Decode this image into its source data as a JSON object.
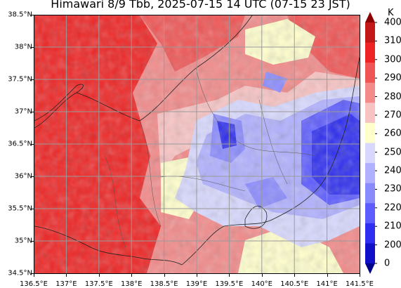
{
  "title": "Himawari 8/9 Tbb, 2025-07-15 14 UTC (07-15 23 JST)",
  "map": {
    "lon_range": [
      136.5,
      141.5
    ],
    "lat_range": [
      34.5,
      38.5
    ],
    "grid": true,
    "x_ticks": [
      "136.5°E",
      "137°E",
      "137.5°E",
      "138°E",
      "138.5°E",
      "139°E",
      "139.5°E",
      "140°E",
      "140.5°E",
      "141°E",
      "141.5°E"
    ],
    "y_ticks": [
      "38.5°N",
      "38°N",
      "37.5°N",
      "37°N",
      "36.5°N",
      "36°N",
      "35.5°N",
      "35°N",
      "34.5°N"
    ]
  },
  "colorbar": {
    "unit": "K",
    "labels": [
      "400",
      "310",
      "300",
      "290",
      "280",
      "270",
      "260",
      "250",
      "240",
      "230",
      "220",
      "210",
      "200",
      "0"
    ],
    "colors": [
      "#8b0000",
      "#c21818",
      "#ee2424",
      "#f05555",
      "#f48a8a",
      "#f8c3c3",
      "#ffffcc",
      "#d8d8ff",
      "#b0b0ff",
      "#8a8aff",
      "#5c5cff",
      "#2e2ef0",
      "#1010c8",
      "#00008b"
    ],
    "extend": "both"
  }
}
